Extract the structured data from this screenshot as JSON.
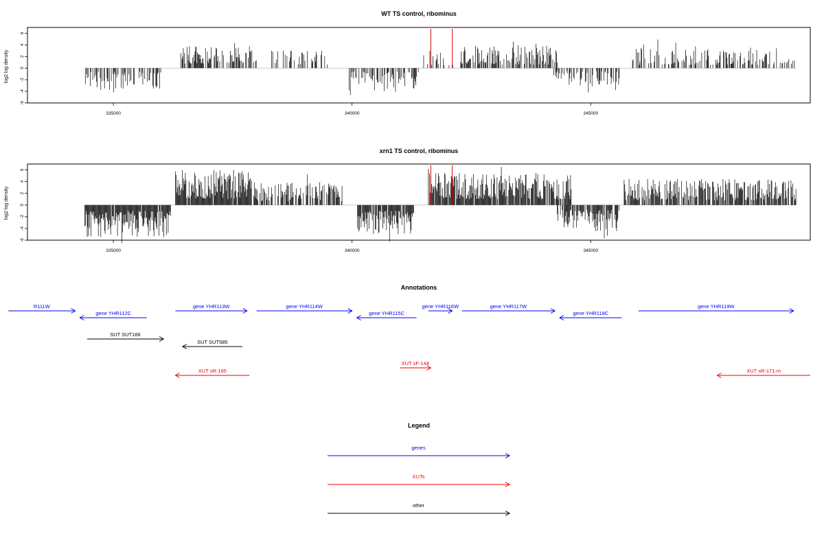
{
  "colors": {
    "gene": "#0000ee",
    "xut": "#ee0000",
    "other": "#000000",
    "signal": "#000000",
    "marker": "#dd0000",
    "baseline": "#bbbbbb"
  },
  "chart_data": [
    {
      "type": "bar",
      "id": "wt",
      "title": "WT TS control, ribominus",
      "ylabel": "log2 log density",
      "xlim": [
        333200,
        349600
      ],
      "ylim": [
        -6,
        7
      ],
      "yticks": [
        -6,
        -4,
        -2,
        0,
        2,
        4,
        6
      ],
      "xticks": [
        335000,
        340000,
        345000
      ],
      "xtick_labels": [
        "335000",
        "340000",
        "345000"
      ],
      "markers": [
        341650,
        342100
      ],
      "segments": [
        {
          "start": 334400,
          "end": 336000,
          "sign": -1,
          "lo": 0.6,
          "hi": 3.8,
          "density": 0.55
        },
        {
          "start": 336400,
          "end": 338000,
          "sign": 1,
          "lo": 0.8,
          "hi": 3.8,
          "density": 0.6
        },
        {
          "start": 338300,
          "end": 339500,
          "sign": 1,
          "lo": 0.6,
          "hi": 3.2,
          "density": 0.35
        },
        {
          "start": 339900,
          "end": 341400,
          "sign": -1,
          "lo": 0.5,
          "hi": 4.2,
          "density": 0.45
        },
        {
          "start": 341500,
          "end": 342150,
          "sign": 1,
          "lo": 0.5,
          "hi": 3.0,
          "density": 0.3
        },
        {
          "start": 342250,
          "end": 344300,
          "sign": 1,
          "lo": 0.6,
          "hi": 4.0,
          "density": 0.6
        },
        {
          "start": 344200,
          "end": 345600,
          "sign": -1,
          "lo": 0.5,
          "hi": 3.2,
          "density": 0.5
        },
        {
          "start": 345850,
          "end": 349300,
          "sign": 1,
          "lo": 0.5,
          "hi": 3.6,
          "density": 0.45
        }
      ]
    },
    {
      "type": "bar",
      "id": "xrn1",
      "title": "xrn1 TS control, ribominus",
      "ylabel": "log2 log density",
      "xlim": [
        333200,
        349600
      ],
      "ylim": [
        -6,
        7
      ],
      "yticks": [
        -6,
        -4,
        -2,
        0,
        2,
        4,
        6
      ],
      "xticks": [
        335000,
        340000,
        345000
      ],
      "xtick_labels": [
        "335000",
        "340000",
        "345000"
      ],
      "markers": [
        341650,
        342100
      ],
      "segments": [
        {
          "start": 334400,
          "end": 336200,
          "sign": -1,
          "lo": 1.0,
          "hi": 5.5,
          "density": 0.95
        },
        {
          "start": 336300,
          "end": 337900,
          "sign": 1,
          "lo": 1.0,
          "hi": 6.0,
          "density": 0.95
        },
        {
          "start": 337900,
          "end": 339800,
          "sign": 1,
          "lo": 0.6,
          "hi": 4.0,
          "density": 0.6
        },
        {
          "start": 340100,
          "end": 341300,
          "sign": -1,
          "lo": 1.0,
          "hi": 5.0,
          "density": 0.85
        },
        {
          "start": 341600,
          "end": 344600,
          "sign": 1,
          "lo": 1.0,
          "hi": 5.5,
          "density": 0.9
        },
        {
          "start": 344300,
          "end": 345600,
          "sign": -1,
          "lo": 0.8,
          "hi": 4.5,
          "density": 0.75
        },
        {
          "start": 345700,
          "end": 349300,
          "sign": 1,
          "lo": 0.8,
          "hi": 4.5,
          "density": 0.75
        }
      ]
    }
  ],
  "annotations": {
    "title": "Annotations",
    "features": [
      {
        "label": "R111W",
        "type": "gene",
        "strand": 1,
        "start": 332800,
        "end": 334200,
        "row": 0
      },
      {
        "label": "gene YHR112C",
        "type": "gene",
        "strand": -1,
        "start": 334300,
        "end": 335700,
        "row": 1
      },
      {
        "label": "gene YHR113W",
        "type": "gene",
        "strand": 1,
        "start": 336300,
        "end": 337800,
        "row": 0
      },
      {
        "label": "gene YHR114W",
        "type": "gene",
        "strand": 1,
        "start": 338000,
        "end": 340000,
        "row": 0
      },
      {
        "label": "gene YHR115C",
        "type": "gene",
        "strand": -1,
        "start": 340100,
        "end": 341350,
        "row": 1
      },
      {
        "label": "gene YHR116W",
        "type": "gene",
        "strand": 1,
        "start": 341600,
        "end": 342100,
        "row": 0
      },
      {
        "label": "gene YHR117W",
        "type": "gene",
        "strand": 1,
        "start": 342300,
        "end": 344250,
        "row": 0
      },
      {
        "label": "gene YHR118C",
        "type": "gene",
        "strand": -1,
        "start": 344350,
        "end": 345650,
        "row": 1
      },
      {
        "label": "gene YHR119W",
        "type": "gene",
        "strand": 1,
        "start": 346000,
        "end": 349250,
        "row": 0
      },
      {
        "label": "SUT SUT166",
        "type": "other",
        "strand": 1,
        "start": 334450,
        "end": 336050,
        "row": 2
      },
      {
        "label": "SUT SUT585",
        "type": "other",
        "strand": -1,
        "start": 336450,
        "end": 337700,
        "row": 3
      },
      {
        "label": "XUT sF-144",
        "type": "xut",
        "strand": 1,
        "start": 341000,
        "end": 341650,
        "row": 4
      },
      {
        "label": "XUT sR-165",
        "type": "xut",
        "strand": -1,
        "start": 336300,
        "end": 337850,
        "row": 5
      },
      {
        "label": "XUT sR-171-m",
        "type": "xut",
        "strand": -1,
        "start": 347650,
        "end": 349600,
        "row": 5
      }
    ]
  },
  "legend": {
    "title": "Legend",
    "items": [
      {
        "label": "genes",
        "type": "gene"
      },
      {
        "label": "XUTs",
        "type": "xut"
      },
      {
        "label": "other",
        "type": "other"
      }
    ]
  }
}
